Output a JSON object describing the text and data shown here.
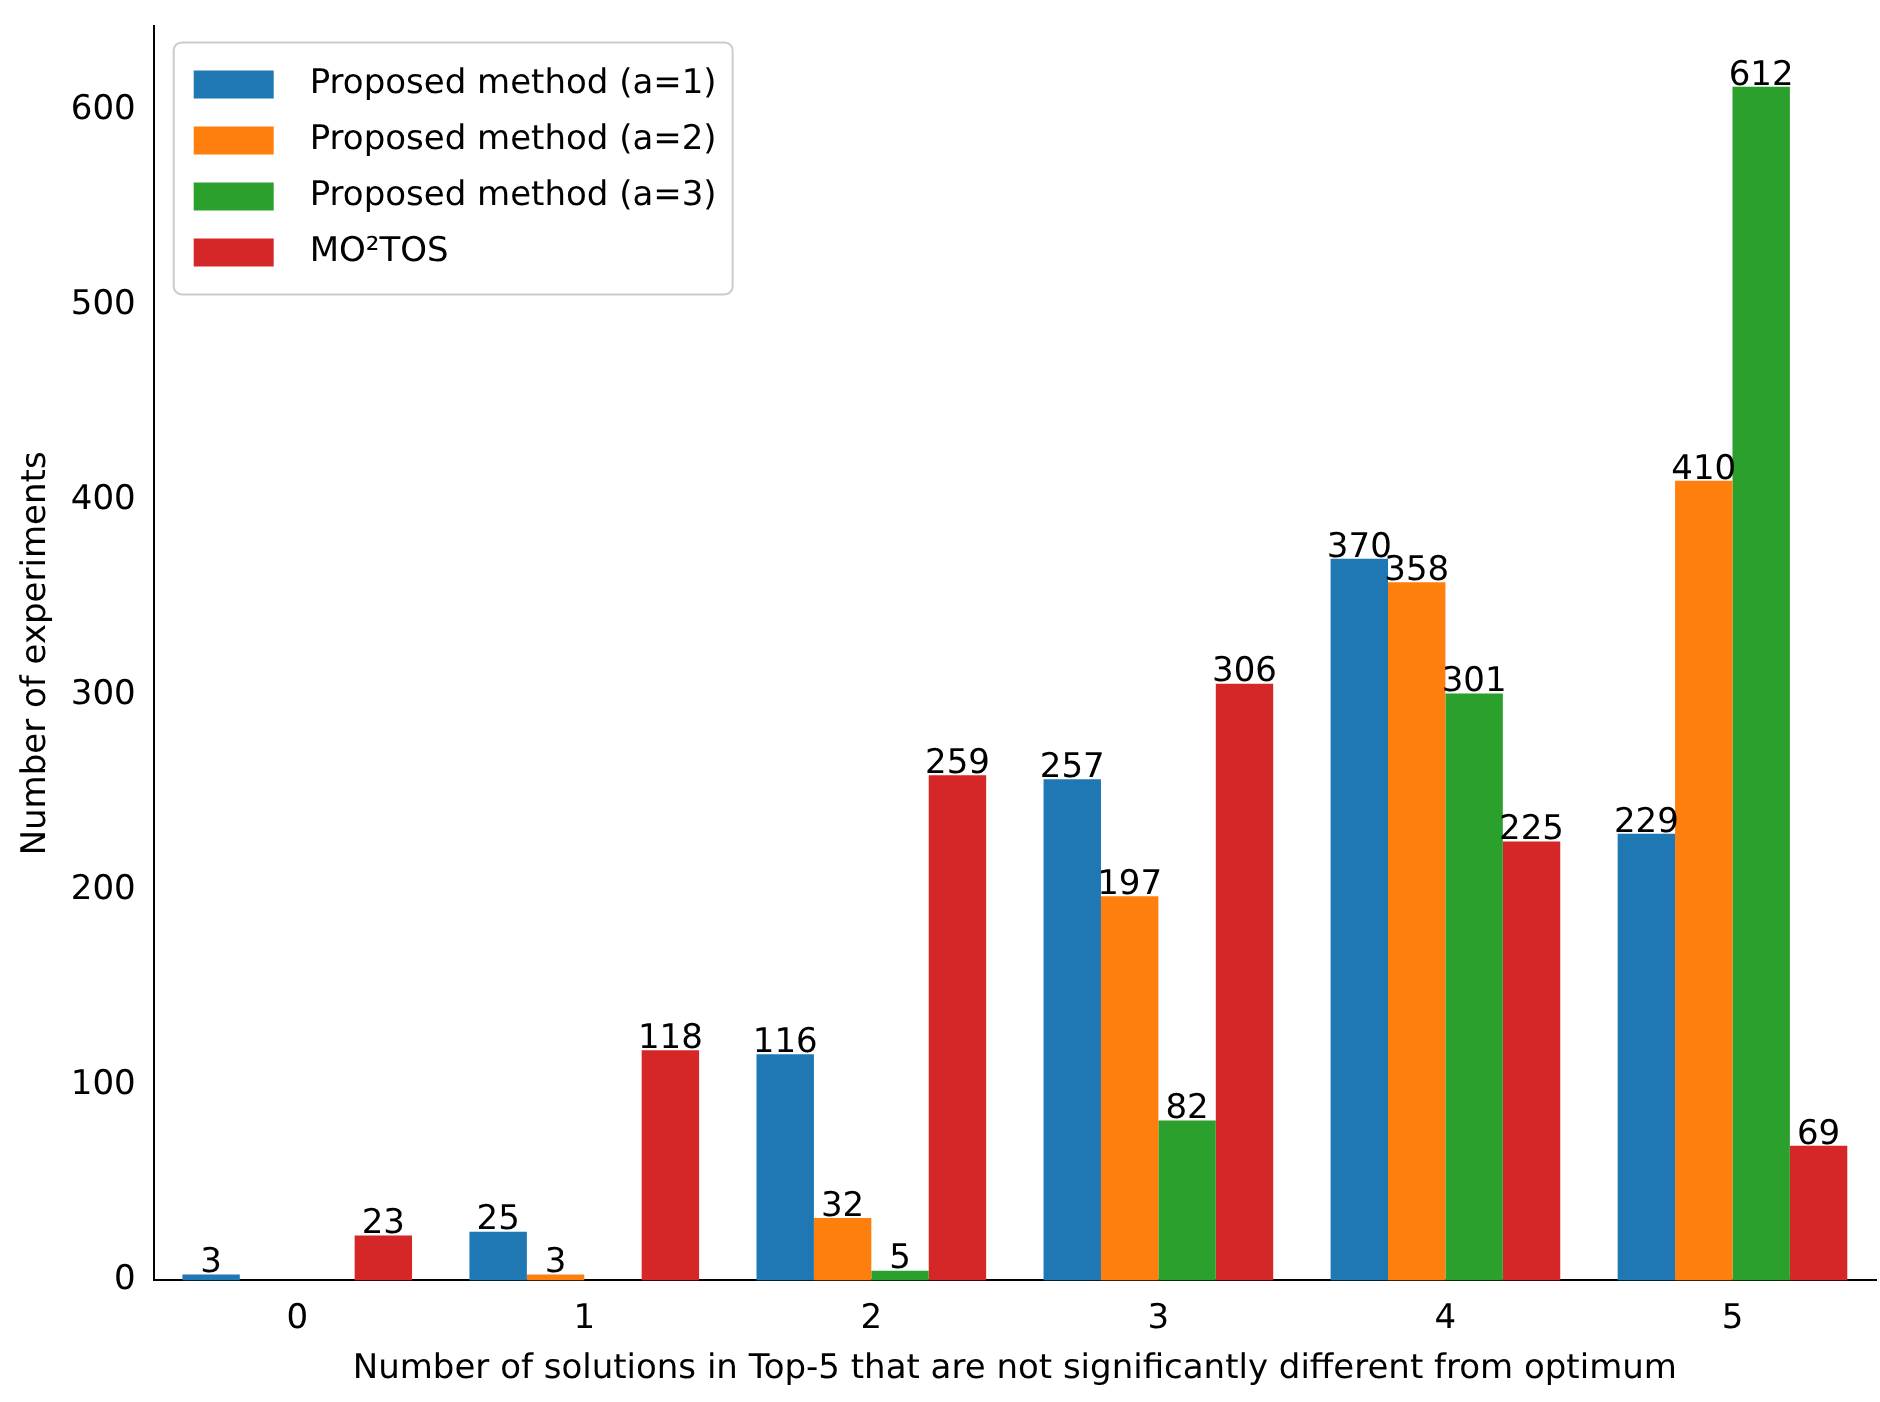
{
  "chart_data": {
    "type": "bar",
    "xlabel": "Number of solutions in Top-5 that are not significantly different from optimum",
    "ylabel": "Number of experiments",
    "categories": [
      "0",
      "1",
      "2",
      "3",
      "4",
      "5"
    ],
    "series": [
      {
        "name": "Proposed method (a=1)",
        "color": "#1f77b4",
        "values": [
          3,
          25,
          116,
          257,
          370,
          229
        ],
        "value_labels": [
          "3",
          "25",
          "116",
          "257",
          "370",
          "229"
        ]
      },
      {
        "name": "Proposed method (a=2)",
        "color": "#ff7f0e",
        "values": [
          0,
          3,
          32,
          197,
          358,
          410
        ],
        "value_labels": [
          null,
          "3",
          "32",
          "197",
          "358",
          "410"
        ]
      },
      {
        "name": "Proposed method (a=3)",
        "color": "#2ca02c",
        "values": [
          0,
          0,
          5,
          82,
          301,
          612
        ],
        "value_labels": [
          null,
          null,
          "5",
          "82",
          "301",
          "612"
        ]
      },
      {
        "name": "MO²TOS",
        "color": "#d62728",
        "values": [
          23,
          118,
          259,
          306,
          225,
          69
        ],
        "value_labels": [
          "23",
          "118",
          "259",
          "306",
          "225",
          "69"
        ]
      }
    ],
    "ylim": [
      0,
      643
    ],
    "yticks": [
      0,
      100,
      200,
      300,
      400,
      500,
      600
    ],
    "grid": false,
    "legend": "top left"
  }
}
